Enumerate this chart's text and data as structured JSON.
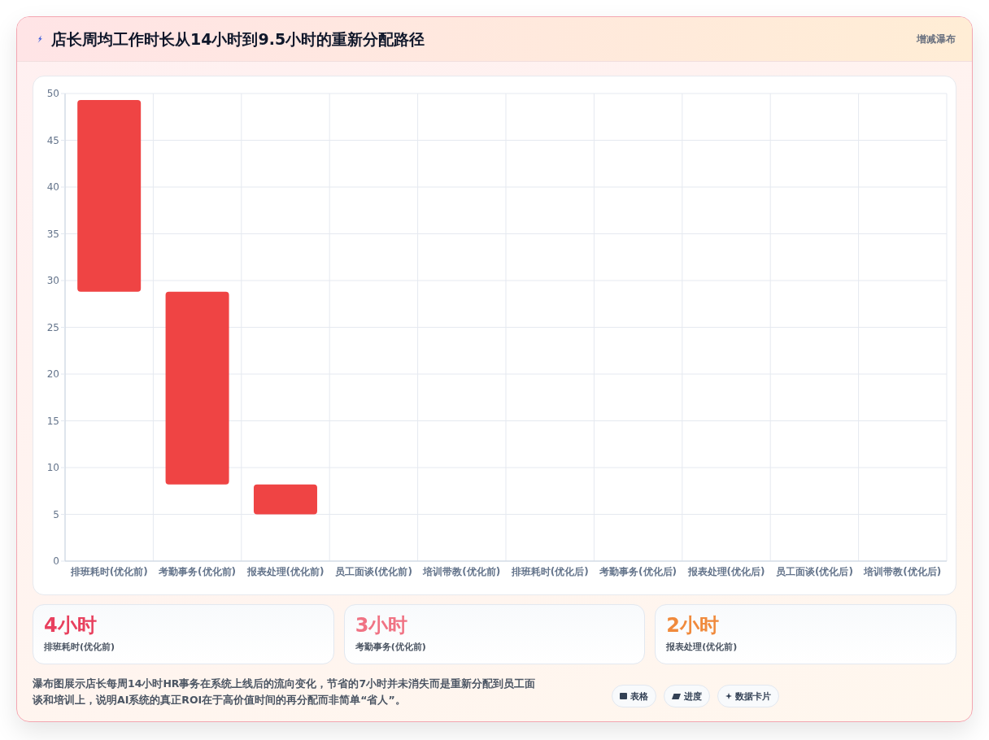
{
  "chart_data": [
    {
      "type": "bar",
      "title": "店长周均工作时长从14小时到9.5小时的重新分配路径",
      "subtitle": "增减瀑布",
      "categories": [
        "排班耗时(优化前)",
        "考勤事务(优化前)",
        "报表处理(优化前)",
        "员工面谈(优化前)",
        "培训带教(优化前)",
        "排班耗时(优化后)",
        "考勤事务(优化后)",
        "报表处理(优化后)",
        "员工面谈(优化后)",
        "培训带教(优化后)"
      ],
      "values": [
        20.5,
        20.6,
        3.2,
        null,
        null,
        null,
        null,
        null,
        null,
        null
      ],
      "base": [
        28.8,
        8.2,
        5,
        null,
        null,
        null,
        null,
        null,
        null,
        null
      ],
      "color": "#ef4444",
      "ylim": [
        0,
        50
      ],
      "yticks": [
        0,
        5,
        10,
        15,
        20,
        25,
        30,
        35,
        40,
        45,
        50
      ],
      "grid": true,
      "annotations": [
        "瀑布图展示店长每周14小时HR事务在系统上线后的流向变化，节省的7小时并未消失而是重新分配到员工面谈和培训上，说明AI系统的真正ROI在于高价值时间的再分配而非简单“省人”。",
        "表格",
        "进度",
        "数据卡片"
      ]
    },
    {
      "type": "other",
      "annotations": [
        "4小时",
        "排班耗时(优化前)",
        "3小时",
        "考勤事务(优化前)",
        "2小时",
        "报表处理(优化前)"
      ],
      "colors": [
        "#e8405e",
        "#f07384",
        "#f08a3c"
      ]
    }
  ]
}
